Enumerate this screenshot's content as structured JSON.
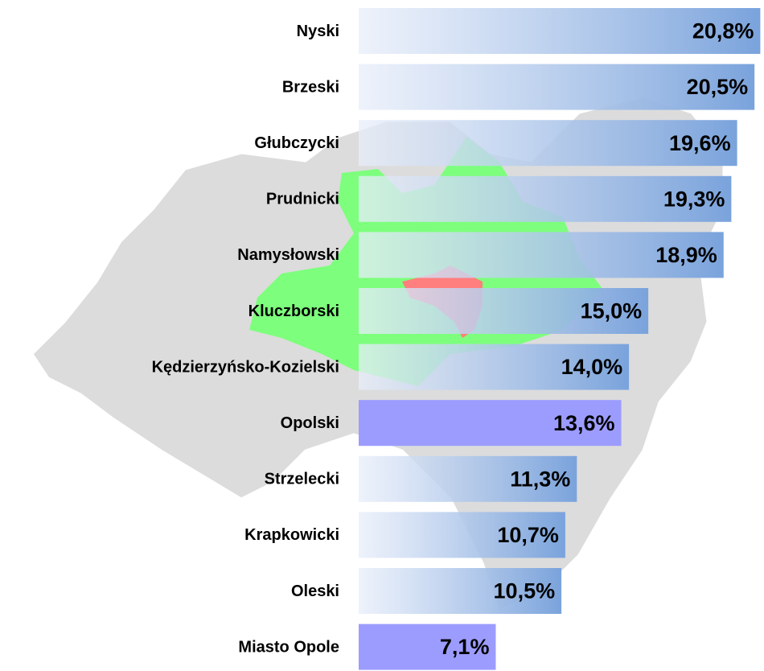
{
  "chart_data": {
    "type": "bar",
    "orientation": "horizontal",
    "categories": [
      "Nyski",
      "Brzeski",
      "Głubczycki",
      "Prudnicki",
      "Namysłowski",
      "Kluczborski",
      "Kędzierzyńsko-Kozielski",
      "Opolski",
      "Strzelecki",
      "Krapkowicki",
      "Oleski",
      "Miasto Opole"
    ],
    "values": [
      20.8,
      20.5,
      19.6,
      19.3,
      18.9,
      15.0,
      14.0,
      13.6,
      11.3,
      10.7,
      10.5,
      7.1
    ],
    "value_labels": [
      "20,8%",
      "20,5%",
      "19,6%",
      "19,3%",
      "18,9%",
      "15,0%",
      "14,0%",
      "13,6%",
      "11,3%",
      "10,7%",
      "10,5%",
      "7,1%"
    ],
    "colors": [
      "#7aa3dc",
      "#7aa3dc",
      "#7aa3dc",
      "#7aa3dc",
      "#7aa3dc",
      "#7aa3dc",
      "#7aa3dc",
      "#9c9cff",
      "#7aa3dc",
      "#7aa3dc",
      "#7aa3dc",
      "#9c9cff"
    ],
    "gradient": [
      true,
      true,
      true,
      true,
      true,
      true,
      true,
      false,
      true,
      true,
      true,
      false
    ],
    "xlim": [
      0,
      21.2
    ]
  }
}
